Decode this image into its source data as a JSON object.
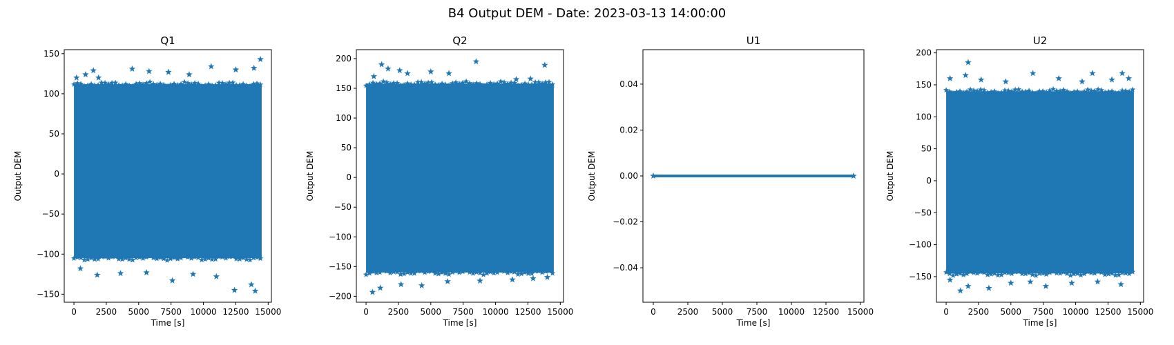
{
  "suptitle": "B4 Output DEM - Date: 2023-03-13 14:00:00",
  "style": {
    "marker_color": "#1f77b4",
    "marker": "star",
    "axes_color": "#000000",
    "background": "#ffffff"
  },
  "chart_data": [
    {
      "type": "scatter",
      "title": "Q1",
      "xlabel": "Time [s]",
      "ylabel": "Output DEM",
      "xlim": [
        -750,
        15250
      ],
      "ylim": [
        -160,
        155
      ],
      "xticks": [
        0,
        2500,
        5000,
        7500,
        10000,
        12500,
        15000
      ],
      "xtick_labels": [
        "0",
        "2500",
        "5000",
        "7500",
        "10000",
        "12500",
        "15000"
      ],
      "yticks": [
        -150,
        -100,
        -50,
        0,
        50,
        100,
        150
      ],
      "ytick_labels": [
        "−150",
        "−100",
        "−50",
        "0",
        "50",
        "100",
        "150"
      ],
      "x_range": [
        0,
        14500
      ],
      "dense_band": [
        -105,
        112
      ],
      "outliers": [
        [
          200,
          120
        ],
        [
          900,
          124
        ],
        [
          1500,
          129
        ],
        [
          1900,
          120
        ],
        [
          4500,
          131
        ],
        [
          5800,
          128
        ],
        [
          7300,
          127
        ],
        [
          8900,
          124
        ],
        [
          10600,
          134
        ],
        [
          12500,
          130
        ],
        [
          13900,
          132
        ],
        [
          14400,
          143
        ],
        [
          500,
          -118
        ],
        [
          1800,
          -126
        ],
        [
          3600,
          -124
        ],
        [
          5600,
          -123
        ],
        [
          7600,
          -133
        ],
        [
          9200,
          -125
        ],
        [
          11000,
          -128
        ],
        [
          12400,
          -145
        ],
        [
          13700,
          -138
        ],
        [
          14000,
          -146
        ]
      ],
      "grid": false,
      "legend": "none"
    },
    {
      "type": "scatter",
      "title": "Q2",
      "xlabel": "Time [s]",
      "ylabel": "Output DEM",
      "xlim": [
        -750,
        15250
      ],
      "ylim": [
        -210,
        215
      ],
      "xticks": [
        0,
        2500,
        5000,
        7500,
        10000,
        12500,
        15000
      ],
      "xtick_labels": [
        "0",
        "2500",
        "5000",
        "7500",
        "10000",
        "12500",
        "15000"
      ],
      "yticks": [
        -200,
        -150,
        -100,
        -50,
        0,
        50,
        100,
        150,
        200
      ],
      "ytick_labels": [
        "−200",
        "−150",
        "−100",
        "−50",
        "0",
        "50",
        "100",
        "150",
        "200"
      ],
      "x_range": [
        0,
        14500
      ],
      "dense_band": [
        -160,
        158
      ],
      "outliers": [
        [
          600,
          170
        ],
        [
          1200,
          190
        ],
        [
          1700,
          183
        ],
        [
          2600,
          180
        ],
        [
          3200,
          175
        ],
        [
          5000,
          178
        ],
        [
          6400,
          175
        ],
        [
          8500,
          195
        ],
        [
          11600,
          165
        ],
        [
          12700,
          166
        ],
        [
          13800,
          189
        ],
        [
          14300,
          150
        ],
        [
          500,
          -193
        ],
        [
          1100,
          -186
        ],
        [
          2700,
          -180
        ],
        [
          4300,
          -182
        ],
        [
          6300,
          -175
        ],
        [
          8800,
          -174
        ],
        [
          11300,
          -172
        ],
        [
          12900,
          -170
        ],
        [
          14000,
          -168
        ]
      ],
      "grid": false,
      "legend": "none"
    },
    {
      "type": "scatter",
      "title": "U1",
      "xlabel": "Time [s]",
      "ylabel": "Output DEM",
      "xlim": [
        -750,
        15250
      ],
      "ylim": [
        -0.055,
        0.055
      ],
      "xticks": [
        0,
        2500,
        5000,
        7500,
        10000,
        12500,
        15000
      ],
      "xtick_labels": [
        "0",
        "2500",
        "5000",
        "7500",
        "10000",
        "12500",
        "15000"
      ],
      "yticks": [
        -0.04,
        -0.02,
        0.0,
        0.02,
        0.04
      ],
      "ytick_labels": [
        "−0.04",
        "−0.02",
        "0.00",
        "0.02",
        "0.04"
      ],
      "x_range": [
        0,
        14500
      ],
      "dense_band": [
        0,
        0
      ],
      "outliers": [],
      "grid": false,
      "legend": "none"
    },
    {
      "type": "scatter",
      "title": "U2",
      "xlabel": "Time [s]",
      "ylabel": "Output DEM",
      "xlim": [
        -750,
        15250
      ],
      "ylim": [
        -190,
        205
      ],
      "xticks": [
        0,
        2500,
        5000,
        7500,
        10000,
        12500,
        15000
      ],
      "xtick_labels": [
        "0",
        "2500",
        "5000",
        "7500",
        "10000",
        "12500",
        "15000"
      ],
      "yticks": [
        -150,
        -100,
        -50,
        0,
        50,
        100,
        150,
        200
      ],
      "ytick_labels": [
        "−150",
        "−100",
        "−50",
        "0",
        "50",
        "100",
        "150",
        "200"
      ],
      "x_range": [
        0,
        14500
      ],
      "dense_band": [
        -145,
        140
      ],
      "outliers": [
        [
          300,
          160
        ],
        [
          1500,
          165
        ],
        [
          1700,
          185
        ],
        [
          2700,
          158
        ],
        [
          4600,
          155
        ],
        [
          6700,
          168
        ],
        [
          8700,
          160
        ],
        [
          10500,
          155
        ],
        [
          11300,
          168
        ],
        [
          12800,
          158
        ],
        [
          13600,
          168
        ],
        [
          14100,
          160
        ],
        [
          300,
          -155
        ],
        [
          1100,
          -172
        ],
        [
          1700,
          -165
        ],
        [
          3300,
          -168
        ],
        [
          5000,
          -160
        ],
        [
          6500,
          -158
        ],
        [
          7700,
          -165
        ],
        [
          9700,
          -160
        ],
        [
          11700,
          -158
        ],
        [
          13500,
          -162
        ]
      ],
      "grid": false,
      "legend": "none"
    }
  ]
}
